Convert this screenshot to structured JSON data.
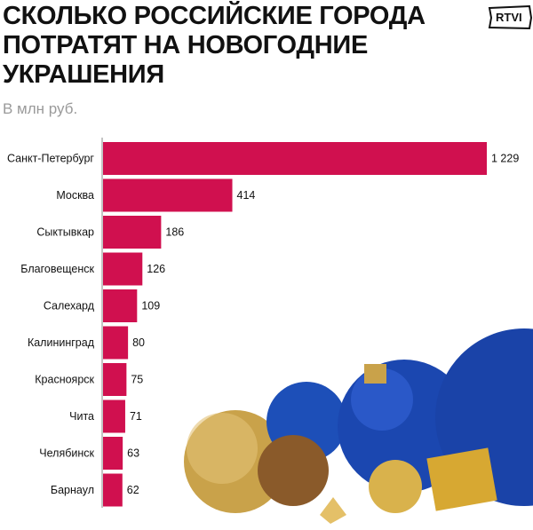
{
  "chart_data": {
    "type": "bar",
    "orientation": "horizontal",
    "title": "СКОЛЬКО РОССИЙСКИЕ ГОРОДА ПОТРАТЯТ НА НОВОГОДНИЕ УКРАШЕНИЯ",
    "subtitle": "В млн руб.",
    "categories": [
      "Санкт-Петербург",
      "Москва",
      "Сыктывкар",
      "Благовещенск",
      "Салехард",
      "Калининград",
      "Красноярск",
      "Чита",
      "Челябинск",
      "Барнаул"
    ],
    "values": [
      1229,
      414,
      186,
      126,
      109,
      80,
      75,
      71,
      63,
      62
    ],
    "value_labels": [
      "1 229",
      "414",
      "186",
      "126",
      "109",
      "80",
      "75",
      "71",
      "63",
      "62"
    ],
    "bar_color": "#d0104f",
    "grid": false
  },
  "logo": {
    "text": "RTVI"
  }
}
